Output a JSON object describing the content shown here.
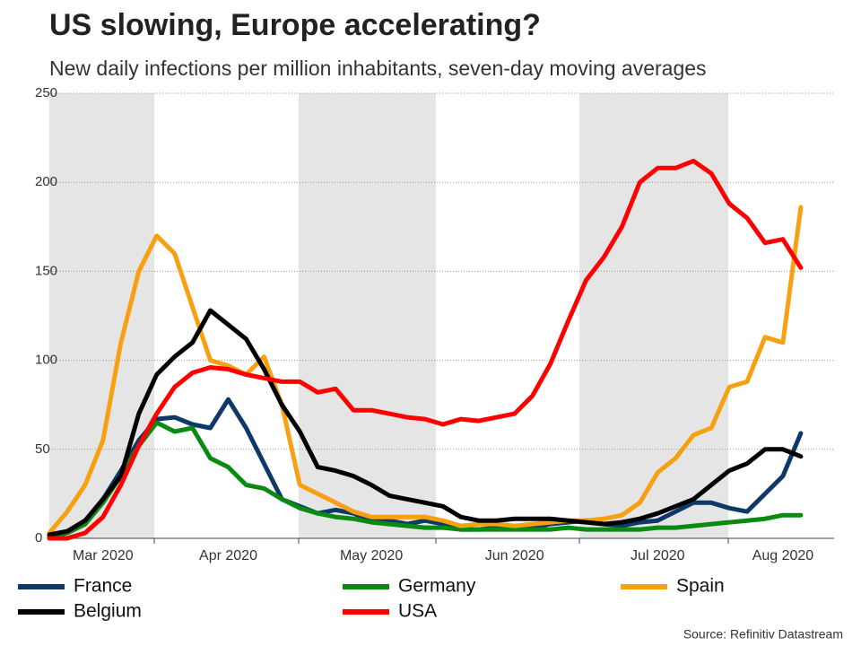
{
  "chart_data": {
    "type": "line",
    "title": "US slowing, Europe accelerating?",
    "subtitle": "New daily infections per million inhabitants, seven-day moving averages",
    "source": "Source: Refinitiv Datastream",
    "categories": [
      null,
      null,
      null,
      "Mar 2020",
      null,
      null,
      null,
      null,
      null,
      null,
      "Apr 2020",
      null,
      null,
      null,
      null,
      null,
      null,
      null,
      "May 2020",
      null,
      null,
      null,
      null,
      null,
      null,
      null,
      "Jun 2020",
      null,
      null,
      null,
      null,
      null,
      null,
      null,
      "Jul 2020",
      null,
      null,
      null,
      null,
      null,
      null,
      "Aug 2020",
      null,
      null
    ],
    "ylim": [
      0,
      250
    ],
    "yticks": [
      0,
      50,
      100,
      150,
      200,
      250
    ],
    "grid": true,
    "series": [
      {
        "name": "France",
        "color": "#0d3868",
        "values": [
          1,
          3,
          8,
          22,
          38,
          55,
          67,
          68,
          64,
          62,
          78,
          62,
          42,
          22,
          18,
          14,
          16,
          14,
          10,
          10,
          8,
          10,
          8,
          5,
          5,
          6,
          6,
          6,
          8,
          9,
          10,
          8,
          7,
          9,
          10,
          15,
          20,
          20,
          17,
          15,
          25,
          35,
          59,
          null
        ]
      },
      {
        "name": "Germany",
        "color": "#0b8a12",
        "values": [
          1,
          3,
          8,
          20,
          35,
          52,
          65,
          60,
          62,
          45,
          40,
          30,
          28,
          22,
          17,
          14,
          12,
          11,
          9,
          8,
          7,
          6,
          6,
          5,
          5,
          5,
          5,
          5,
          5,
          6,
          5,
          5,
          5,
          5,
          6,
          6,
          7,
          8,
          9,
          10,
          11,
          13,
          13,
          null
        ]
      },
      {
        "name": "Spain",
        "color": "#f7a012",
        "values": [
          3,
          15,
          30,
          55,
          110,
          150,
          170,
          160,
          130,
          100,
          97,
          92,
          102,
          75,
          30,
          25,
          20,
          15,
          12,
          12,
          12,
          12,
          10,
          7,
          8,
          8,
          7,
          8,
          9,
          10,
          10,
          11,
          13,
          20,
          37,
          45,
          58,
          62,
          85,
          88,
          113,
          110,
          186,
          null
        ]
      },
      {
        "name": "Belgium",
        "color": "#000000",
        "values": [
          2,
          4,
          10,
          22,
          35,
          70,
          92,
          102,
          110,
          128,
          120,
          112,
          95,
          75,
          60,
          40,
          38,
          35,
          30,
          24,
          22,
          20,
          18,
          12,
          10,
          10,
          11,
          11,
          11,
          10,
          9,
          8,
          9,
          11,
          14,
          18,
          22,
          30,
          38,
          42,
          50,
          50,
          46,
          null
        ]
      },
      {
        "name": "USA",
        "color": "#ff0000",
        "values": [
          0,
          0,
          3,
          12,
          30,
          52,
          70,
          85,
          93,
          96,
          95,
          92,
          90,
          88,
          88,
          82,
          84,
          72,
          72,
          70,
          68,
          67,
          64,
          67,
          66,
          68,
          70,
          80,
          98,
          122,
          145,
          158,
          175,
          200,
          208,
          208,
          212,
          205,
          188,
          180,
          166,
          168,
          152,
          null
        ]
      }
    ]
  }
}
